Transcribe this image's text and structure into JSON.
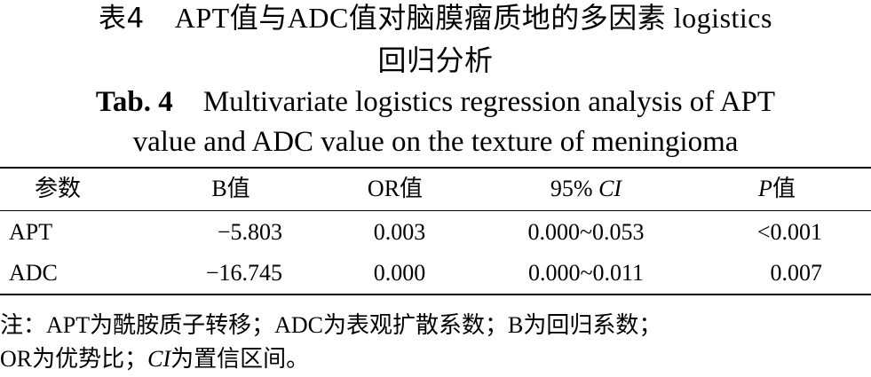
{
  "title_cn": {
    "label": "表4",
    "line1": "APT值与ADC值对脑膜瘤质地的多因素 logistics",
    "line2": "回归分析"
  },
  "title_en": {
    "label": "Tab. 4",
    "line1": "Multivariate logistics regression analysis of APT",
    "line2": "value and ADC value on the texture of meningioma"
  },
  "table": {
    "headers": {
      "param": "参数",
      "b_prefix": "B",
      "b_suffix": "值",
      "or_prefix": "OR",
      "or_suffix": "值",
      "ci_prefix": "95% ",
      "ci_italic": "CI",
      "p_italic": "P",
      "p_suffix": "值"
    },
    "rows": [
      {
        "param": "APT",
        "b": "−5.803",
        "or": "0.003",
        "ci": "0.000~0.053",
        "p": "<0.001"
      },
      {
        "param": "ADC",
        "b": "−16.745",
        "or": "0.000",
        "ci": "0.000~0.011",
        "p": "0.007"
      }
    ]
  },
  "note": {
    "line1": "注：APT为酰胺质子转移；ADC为表观扩散系数；B为回归系数；",
    "line2_a": "OR为优势比；",
    "line2_ci": "CI",
    "line2_b": "为置信区间。"
  }
}
